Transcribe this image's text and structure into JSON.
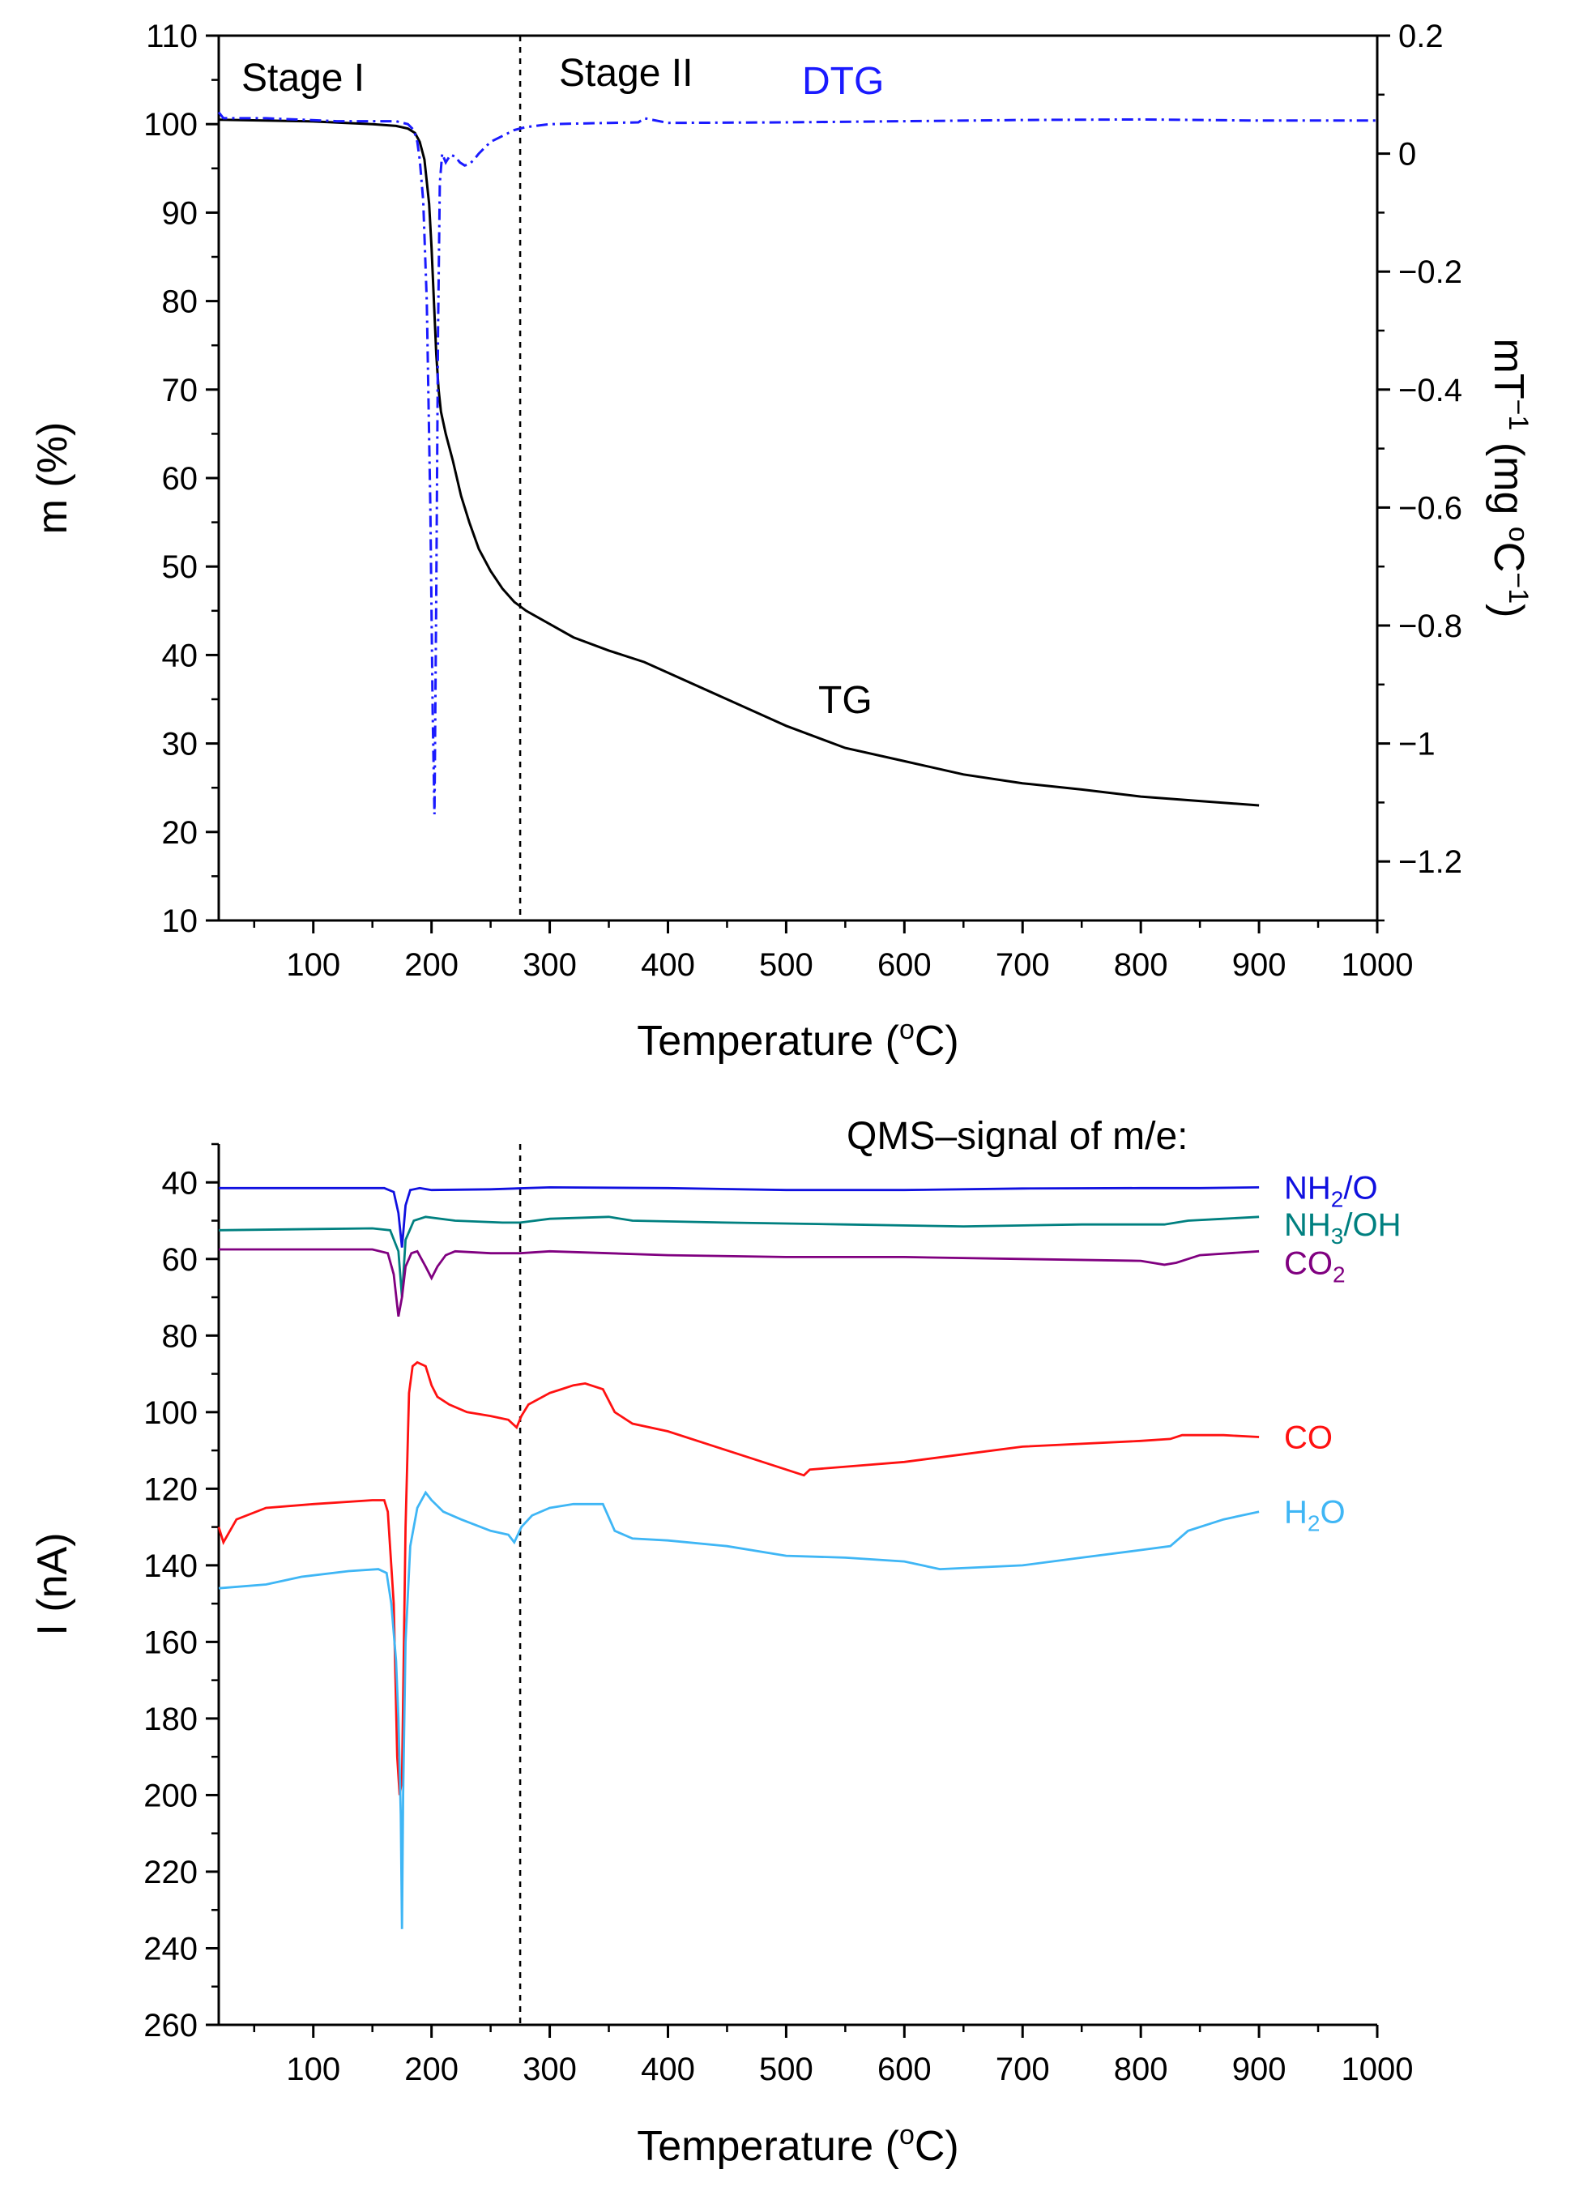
{
  "chart_data": [
    {
      "type": "line",
      "title": "",
      "xlabel": "Temperature (°C)",
      "xlabel_parts": [
        "Temperature (",
        "o",
        "C)"
      ],
      "xlim": [
        20,
        1000
      ],
      "xticks": [
        100,
        200,
        300,
        400,
        500,
        600,
        700,
        800,
        900,
        1000
      ],
      "y_left": {
        "label": "m (%)",
        "range": [
          10,
          110
        ],
        "ticks": [
          10,
          20,
          30,
          40,
          50,
          60,
          70,
          80,
          90,
          100,
          110
        ]
      },
      "y_right": {
        "label": "mT⁻¹ (mg °C⁻¹)",
        "label_parts": [
          "mT",
          "−1",
          " (mg ",
          "o",
          "C",
          "−1",
          ")"
        ],
        "range": [
          -1.3,
          0.2
        ],
        "ticks": [
          0.2,
          0,
          -0.2,
          -0.4,
          -0.6,
          -0.8,
          -1,
          -1.2
        ],
        "tick_labels": [
          "0.2",
          "0",
          "−0.2",
          "−0.4",
          "−0.6",
          "−0.8",
          "−1",
          "−1.2"
        ]
      },
      "stage_divider_x": 275,
      "annotations": [
        "Stage I",
        "Stage II",
        "DTG",
        "TG"
      ],
      "series": [
        {
          "name": "TG",
          "axis": "left",
          "color": "#000000",
          "style": "solid",
          "x": [
            20,
            100,
            150,
            170,
            180,
            186,
            190,
            194,
            198,
            200,
            202,
            204,
            206,
            208,
            212,
            218,
            225,
            232,
            240,
            250,
            260,
            270,
            280,
            300,
            320,
            350,
            380,
            400,
            450,
            500,
            550,
            600,
            650,
            700,
            750,
            800,
            850,
            900
          ],
          "values": [
            100.5,
            100.3,
            100.0,
            99.8,
            99.5,
            99.0,
            98.0,
            96.0,
            91.0,
            86.0,
            80.0,
            74.0,
            70.0,
            67.5,
            65.0,
            62.0,
            58.0,
            55.0,
            52.0,
            49.5,
            47.5,
            46.0,
            45.0,
            43.5,
            42.0,
            40.5,
            39.2,
            38.0,
            35.0,
            32.0,
            29.5,
            28.0,
            26.5,
            25.5,
            24.8,
            24.0,
            23.5,
            23.0
          ]
        },
        {
          "name": "DTG",
          "axis": "right",
          "color": "#1a1aff",
          "style": "dashdot",
          "x": [
            20,
            24,
            60,
            120,
            170,
            180,
            185,
            188,
            190,
            193,
            196,
            199,
            201,
            202.5,
            204,
            205.5,
            207,
            209,
            212,
            216,
            220,
            224,
            228,
            232,
            236,
            240,
            250,
            260,
            270,
            280,
            300,
            350,
            375,
            380,
            400,
            500,
            600,
            700,
            800,
            900,
            1000
          ],
          "values": [
            0.07,
            0.06,
            0.06,
            0.055,
            0.055,
            0.05,
            0.04,
            0.02,
            -0.01,
            -0.08,
            -0.25,
            -0.6,
            -0.95,
            -1.12,
            -0.75,
            -0.3,
            -0.05,
            0.0,
            -0.015,
            -0.002,
            -0.005,
            -0.015,
            -0.02,
            -0.018,
            -0.01,
            0.0,
            0.02,
            0.03,
            0.04,
            0.045,
            0.05,
            0.052,
            0.053,
            0.06,
            0.052,
            0.053,
            0.055,
            0.057,
            0.058,
            0.056,
            0.056
          ]
        }
      ]
    },
    {
      "type": "line",
      "title": "QMS–signal of m/e:",
      "xlabel": "Temperature (°C)",
      "xlabel_parts": [
        "Temperature (",
        "o",
        "C)"
      ],
      "xlim": [
        20,
        1000
      ],
      "xticks": [
        100,
        200,
        300,
        400,
        500,
        600,
        700,
        800,
        900,
        1000
      ],
      "ylabel": "I (nA)",
      "ylim": [
        30,
        260
      ],
      "y_inverted": true,
      "yticks": [
        40,
        60,
        80,
        100,
        120,
        140,
        160,
        180,
        200,
        220,
        240,
        260
      ],
      "stage_divider_x": 275,
      "series": [
        {
          "name": "NH2/O",
          "label_parts": [
            "NH",
            "2",
            "/O"
          ],
          "color": "#1010e0",
          "x": [
            20,
            160,
            168,
            172,
            175,
            178,
            182,
            190,
            200,
            250,
            300,
            400,
            500,
            600,
            700,
            800,
            850,
            900
          ],
          "values": [
            41.5,
            41.5,
            42.5,
            48.0,
            57.0,
            46.0,
            42.0,
            41.5,
            42.0,
            41.8,
            41.3,
            41.5,
            42.0,
            42.0,
            41.6,
            41.5,
            41.5,
            41.3
          ]
        },
        {
          "name": "NH3/OH",
          "label_parts": [
            "NH",
            "3",
            "/OH"
          ],
          "color": "#008080",
          "x": [
            20,
            150,
            165,
            172,
            175,
            178,
            185,
            195,
            220,
            260,
            275,
            300,
            350,
            370,
            450,
            550,
            650,
            750,
            820,
            840,
            870,
            900
          ],
          "values": [
            52.5,
            52.0,
            52.5,
            58.0,
            70.0,
            55.0,
            50.0,
            49.0,
            50.0,
            50.5,
            50.5,
            49.5,
            49.0,
            50.0,
            50.5,
            51.0,
            51.5,
            51.0,
            51.0,
            50.0,
            49.5,
            49.0
          ],
          "label_y": 51
        },
        {
          "name": "CO2",
          "label_parts": [
            "CO",
            "2"
          ],
          "color": "#800080",
          "x": [
            20,
            150,
            163,
            168,
            172,
            175,
            178,
            183,
            188,
            195,
            200,
            205,
            212,
            220,
            250,
            275,
            300,
            350,
            400,
            500,
            600,
            700,
            800,
            820,
            830,
            850,
            900
          ],
          "values": [
            57.5,
            57.5,
            58.5,
            64.0,
            75.0,
            70.0,
            62.0,
            58.5,
            58.0,
            62.0,
            65.0,
            62.0,
            59.0,
            58.0,
            58.5,
            58.5,
            58.0,
            58.5,
            59.0,
            59.5,
            59.5,
            60.0,
            60.5,
            61.5,
            61.0,
            59.0,
            58.0
          ],
          "label_y": 61
        },
        {
          "name": "CO",
          "label_parts": [
            "CO"
          ],
          "color": "#ff1111",
          "x": [
            20,
            24,
            35,
            60,
            100,
            150,
            160,
            163,
            168,
            171,
            173,
            175,
            178,
            181,
            184,
            188,
            195,
            200,
            205,
            215,
            230,
            250,
            265,
            272,
            276,
            282,
            300,
            310,
            320,
            330,
            345,
            355,
            370,
            400,
            450,
            500,
            515,
            520,
            560,
            600,
            650,
            700,
            800,
            825,
            835,
            870,
            900
          ],
          "values": [
            130.0,
            134.0,
            128.0,
            125.0,
            124.0,
            123.0,
            123.0,
            126.0,
            150.0,
            190.0,
            200.0,
            196.0,
            130.0,
            95.0,
            88.0,
            87.0,
            88.0,
            93.0,
            96.0,
            98.0,
            100.0,
            101.0,
            102.0,
            104.0,
            101.0,
            98.0,
            95.0,
            94.0,
            93.0,
            92.5,
            94.0,
            100.0,
            103.0,
            105.0,
            110.0,
            115.0,
            116.5,
            115.0,
            114.0,
            113.0,
            111.0,
            109.0,
            107.5,
            107.0,
            106.0,
            106.0,
            106.5
          ]
        },
        {
          "name": "H2O",
          "label_parts": [
            "H",
            "2",
            "O"
          ],
          "color": "#3fb6f5",
          "x": [
            20,
            60,
            75,
            90,
            130,
            155,
            162,
            166,
            170,
            172,
            174,
            175,
            176,
            178,
            182,
            188,
            195,
            200,
            210,
            225,
            250,
            265,
            270,
            276,
            285,
            300,
            320,
            345,
            355,
            370,
            400,
            450,
            500,
            550,
            600,
            630,
            700,
            750,
            800,
            825,
            840,
            870,
            900
          ],
          "values": [
            146.0,
            145.0,
            144.0,
            143.0,
            141.5,
            141.0,
            142.0,
            150.0,
            165.0,
            180.0,
            205.0,
            235.0,
            200.0,
            160.0,
            135.0,
            125.0,
            121.0,
            123.0,
            126.0,
            128.0,
            131.0,
            132.0,
            134.0,
            130.0,
            127.0,
            125.0,
            124.0,
            124.0,
            131.0,
            133.0,
            133.5,
            135.0,
            137.5,
            138.0,
            139.0,
            141.0,
            140.0,
            138.0,
            136.0,
            135.0,
            131.0,
            128.0,
            126.0
          ]
        }
      ]
    }
  ]
}
